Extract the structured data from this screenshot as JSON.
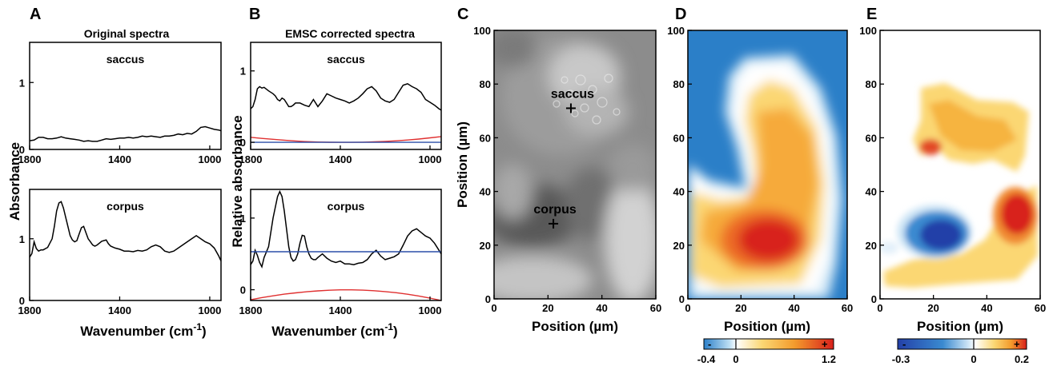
{
  "panels": {
    "A": {
      "letter": "A",
      "title": "Original spectra"
    },
    "B": {
      "letter": "B",
      "title": "EMSC corrected spectra"
    },
    "C": {
      "letter": "C"
    },
    "D": {
      "letter": "D"
    },
    "E": {
      "letter": "E"
    }
  },
  "labels": {
    "saccus": "saccus",
    "corpus": "corpus",
    "absorbance": "Absorbance",
    "relative_absorbance": "Relative absorbance",
    "wavenumber_main": "Wavenumber (cm",
    "wavenumber_sup": "-1",
    "wavenumber_close": ")",
    "position_um": "Position (µm)",
    "minus": "-",
    "plus": "+"
  },
  "colors": {
    "spectrum": "#000000",
    "emsc_red": "#e03030",
    "emsc_blue": "#2b4fa8",
    "map_d_low": "#2b7fc8",
    "map_d_high": "#d8201c",
    "map_e_low": "#2340a8",
    "map_e_high": "#d8201c"
  },
  "chart_data": [
    {
      "panel": "A",
      "type": "line",
      "title": "Original spectra",
      "ylabel": "Absorbance",
      "xlabel": "Wavenumber (cm-1)",
      "xlim": [
        1800,
        950
      ],
      "x_reversed": true,
      "subplots": [
        {
          "label": "saccus",
          "ylim": [
            0,
            1.6
          ],
          "yticks": [
            0,
            1
          ],
          "xticks": [
            1800,
            1400,
            1000
          ],
          "series": [
            {
              "color": "black",
              "x": [
                1800,
                1780,
                1760,
                1740,
                1720,
                1700,
                1680,
                1660,
                1640,
                1620,
                1600,
                1580,
                1560,
                1540,
                1520,
                1500,
                1480,
                1460,
                1440,
                1420,
                1400,
                1380,
                1360,
                1340,
                1320,
                1300,
                1280,
                1260,
                1240,
                1220,
                1200,
                1180,
                1160,
                1140,
                1120,
                1100,
                1080,
                1060,
                1040,
                1020,
                1000,
                980,
                960,
                950
              ],
              "y": [
                0.13,
                0.14,
                0.18,
                0.18,
                0.16,
                0.16,
                0.17,
                0.19,
                0.17,
                0.16,
                0.15,
                0.14,
                0.12,
                0.13,
                0.12,
                0.12,
                0.14,
                0.16,
                0.15,
                0.16,
                0.17,
                0.17,
                0.18,
                0.17,
                0.18,
                0.2,
                0.19,
                0.2,
                0.19,
                0.18,
                0.2,
                0.2,
                0.21,
                0.23,
                0.22,
                0.24,
                0.23,
                0.27,
                0.33,
                0.34,
                0.32,
                0.3,
                0.29,
                0.28
              ]
            }
          ]
        },
        {
          "label": "corpus",
          "ylim": [
            0,
            1.8
          ],
          "yticks": [
            0,
            1
          ],
          "xticks": [
            1800,
            1400,
            1000
          ],
          "series": [
            {
              "color": "black",
              "x": [
                1800,
                1790,
                1780,
                1770,
                1760,
                1750,
                1740,
                1720,
                1700,
                1690,
                1680,
                1670,
                1660,
                1650,
                1640,
                1630,
                1620,
                1610,
                1600,
                1590,
                1580,
                1570,
                1560,
                1550,
                1540,
                1530,
                1520,
                1510,
                1500,
                1480,
                1460,
                1450,
                1440,
                1420,
                1400,
                1380,
                1360,
                1340,
                1320,
                1300,
                1280,
                1260,
                1240,
                1220,
                1200,
                1180,
                1160,
                1140,
                1120,
                1100,
                1080,
                1060,
                1040,
                1020,
                1000,
                980,
                960,
                950
              ],
              "y": [
                0.7,
                0.76,
                0.95,
                0.84,
                0.8,
                0.82,
                0.82,
                0.86,
                1.0,
                1.2,
                1.45,
                1.58,
                1.6,
                1.5,
                1.35,
                1.2,
                1.05,
                0.98,
                0.95,
                0.97,
                1.08,
                1.18,
                1.2,
                1.1,
                1.0,
                0.95,
                0.9,
                0.88,
                0.9,
                0.96,
                0.98,
                0.92,
                0.88,
                0.85,
                0.83,
                0.8,
                0.8,
                0.79,
                0.81,
                0.8,
                0.82,
                0.87,
                0.9,
                0.87,
                0.8,
                0.78,
                0.8,
                0.85,
                0.9,
                0.95,
                1.0,
                1.05,
                1.0,
                0.95,
                0.92,
                0.85,
                0.72,
                0.64
              ]
            }
          ]
        }
      ]
    },
    {
      "panel": "B",
      "type": "line",
      "title": "EMSC corrected spectra",
      "ylabel": "Relative absorbance",
      "xlabel": "Wavenumber (cm-1)",
      "xlim": [
        1800,
        950
      ],
      "x_reversed": true,
      "subplots": [
        {
          "label": "saccus",
          "ylim": [
            -0.1,
            1.4
          ],
          "yticks": [
            0,
            1
          ],
          "xticks": [
            1800,
            1400,
            1000
          ],
          "series": [
            {
              "color": "black",
              "x": [
                1800,
                1790,
                1780,
                1770,
                1760,
                1750,
                1740,
                1720,
                1700,
                1690,
                1680,
                1670,
                1660,
                1650,
                1640,
                1630,
                1620,
                1610,
                1600,
                1580,
                1560,
                1540,
                1520,
                1500,
                1480,
                1460,
                1440,
                1420,
                1400,
                1380,
                1360,
                1340,
                1320,
                1300,
                1280,
                1260,
                1240,
                1220,
                1200,
                1180,
                1160,
                1140,
                1120,
                1100,
                1080,
                1060,
                1040,
                1020,
                1000,
                980,
                960,
                950
              ],
              "y": [
                0.47,
                0.5,
                0.6,
                0.75,
                0.78,
                0.76,
                0.77,
                0.72,
                0.68,
                0.65,
                0.6,
                0.58,
                0.62,
                0.6,
                0.55,
                0.5,
                0.5,
                0.52,
                0.55,
                0.55,
                0.52,
                0.5,
                0.6,
                0.5,
                0.58,
                0.68,
                0.65,
                0.62,
                0.6,
                0.58,
                0.55,
                0.58,
                0.62,
                0.68,
                0.75,
                0.78,
                0.72,
                0.62,
                0.58,
                0.56,
                0.6,
                0.7,
                0.8,
                0.82,
                0.78,
                0.75,
                0.7,
                0.6,
                0.56,
                0.52,
                0.47,
                0.45
              ]
            },
            {
              "color": "red",
              "name": "",
              "x": [
                1800,
                1750,
                1700,
                1650,
                1600,
                1550,
                1500,
                1450,
                1400,
                1350,
                1300,
                1250,
                1200,
                1150,
                1100,
                1050,
                1000,
                950
              ],
              "y": [
                0.07,
                0.055,
                0.042,
                0.03,
                0.019,
                0.01,
                0.004,
                0.001,
                0.0,
                0.0,
                0.002,
                0.006,
                0.012,
                0.021,
                0.032,
                0.046,
                0.062,
                0.08
              ]
            },
            {
              "color": "blue",
              "name": "",
              "x": [
                1800,
                950
              ],
              "y": [
                0.0,
                0.0
              ]
            }
          ]
        },
        {
          "label": "corpus",
          "ylim": [
            -0.15,
            1.4
          ],
          "yticks": [
            0,
            1
          ],
          "xticks": [
            1800,
            1400,
            1000
          ],
          "series": [
            {
              "color": "black",
              "x": [
                1800,
                1790,
                1780,
                1770,
                1760,
                1750,
                1740,
                1720,
                1710,
                1700,
                1690,
                1680,
                1670,
                1660,
                1650,
                1640,
                1630,
                1620,
                1610,
                1600,
                1590,
                1580,
                1570,
                1560,
                1550,
                1540,
                1530,
                1520,
                1510,
                1500,
                1480,
                1460,
                1440,
                1420,
                1400,
                1380,
                1360,
                1340,
                1320,
                1300,
                1280,
                1260,
                1240,
                1220,
                1200,
                1180,
                1160,
                1140,
                1120,
                1100,
                1080,
                1060,
                1040,
                1020,
                1000,
                980,
                960,
                950
              ],
              "y": [
                0.35,
                0.4,
                0.55,
                0.48,
                0.38,
                0.32,
                0.45,
                0.6,
                0.8,
                1.0,
                1.15,
                1.3,
                1.37,
                1.3,
                1.1,
                0.85,
                0.6,
                0.45,
                0.4,
                0.42,
                0.5,
                0.65,
                0.76,
                0.75,
                0.6,
                0.5,
                0.44,
                0.42,
                0.42,
                0.45,
                0.5,
                0.44,
                0.4,
                0.38,
                0.4,
                0.36,
                0.36,
                0.35,
                0.37,
                0.38,
                0.42,
                0.5,
                0.55,
                0.47,
                0.42,
                0.44,
                0.46,
                0.5,
                0.62,
                0.75,
                0.82,
                0.85,
                0.8,
                0.75,
                0.72,
                0.65,
                0.55,
                0.5
              ]
            },
            {
              "color": "red",
              "name": "",
              "x": [
                1800,
                1750,
                1700,
                1650,
                1600,
                1550,
                1500,
                1450,
                1400,
                1350,
                1300,
                1250,
                1200,
                1150,
                1100,
                1050,
                1000,
                950
              ],
              "y": [
                -0.14,
                -0.11,
                -0.085,
                -0.062,
                -0.044,
                -0.028,
                -0.016,
                -0.007,
                -0.002,
                -0.002,
                -0.006,
                -0.014,
                -0.026,
                -0.042,
                -0.063,
                -0.088,
                -0.117,
                -0.15
              ]
            },
            {
              "color": "blue",
              "name": "",
              "x": [
                1800,
                950
              ],
              "y": [
                0.53,
                0.53
              ]
            }
          ]
        }
      ]
    },
    {
      "panel": "C",
      "type": "image",
      "xlabel": "Position (µm)",
      "ylabel": "Position (µm)",
      "xlim": [
        0,
        60
      ],
      "ylim": [
        0,
        100
      ],
      "xticks": [
        0,
        20,
        40,
        60
      ],
      "yticks": [
        0,
        20,
        40,
        60,
        80,
        100
      ],
      "markers": [
        {
          "label": "saccus",
          "x": 28.5,
          "y": 71
        },
        {
          "label": "corpus",
          "x": 22,
          "y": 28
        }
      ]
    },
    {
      "panel": "D",
      "type": "heatmap",
      "xlabel": "Position (µm)",
      "xlim": [
        0,
        60
      ],
      "ylim": [
        0,
        100
      ],
      "xticks": [
        0,
        20,
        40,
        60
      ],
      "yticks": [
        0,
        20,
        40,
        60,
        80,
        100
      ],
      "colorbar": {
        "min": -0.4,
        "zero": 0,
        "max": 1.2,
        "ticks": [
          "-0.4",
          "0",
          "1.2"
        ],
        "low_symbol": "-",
        "high_symbol": "+"
      },
      "blobs": [
        {
          "x": 30,
          "y": 20,
          "value": 1.1
        },
        {
          "x": 24,
          "y": 22,
          "value": 0.8
        },
        {
          "x": 40,
          "y": 56,
          "value": 0.6
        },
        {
          "x": 30,
          "y": 62,
          "value": 0.5
        },
        {
          "x": 10,
          "y": 28,
          "value": 0.5
        }
      ]
    },
    {
      "panel": "E",
      "type": "heatmap",
      "xlabel": "Position (µm)",
      "xlim": [
        0,
        60
      ],
      "ylim": [
        0,
        100
      ],
      "xticks": [
        0,
        20,
        40,
        60
      ],
      "yticks": [
        0,
        20,
        40,
        60,
        80,
        100
      ],
      "colorbar": {
        "min": -0.3,
        "zero": 0,
        "max": 0.2,
        "ticks": [
          "-0.3",
          "0",
          "0.2"
        ],
        "low_symbol": "-",
        "high_symbol": "+"
      },
      "blobs": [
        {
          "x": 50,
          "y": 30,
          "value": 0.18
        },
        {
          "x": 20,
          "y": 55,
          "value": 0.15
        },
        {
          "x": 35,
          "y": 62,
          "value": 0.08
        },
        {
          "x": 35,
          "y": 9,
          "value": 0.05
        },
        {
          "x": 25,
          "y": 22,
          "value": -0.28
        },
        {
          "x": 5,
          "y": 20,
          "value": -0.03
        }
      ]
    }
  ]
}
